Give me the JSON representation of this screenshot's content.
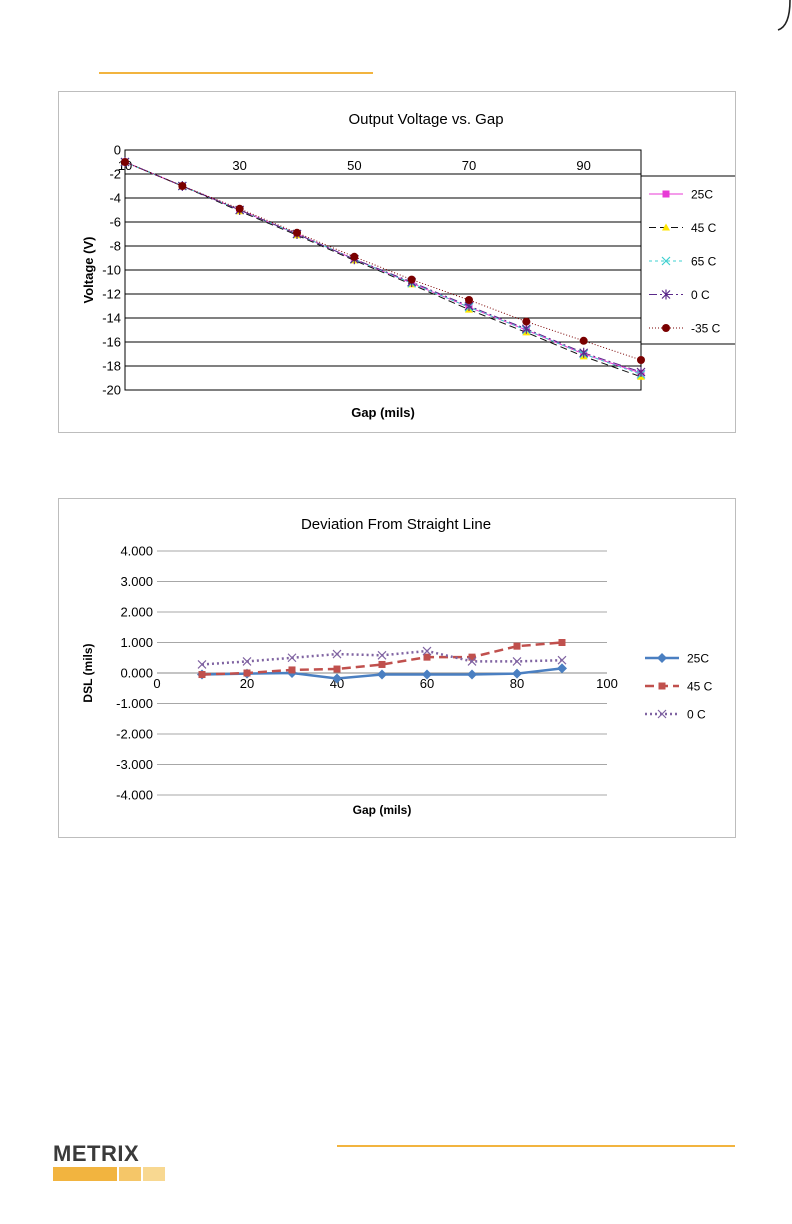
{
  "page": {
    "accent_color": "#f2b43f",
    "logo_text": "METRIX",
    "logo_bar_colors": [
      "#f2b43f",
      "#f5c668",
      "#f8d891"
    ]
  },
  "chart_data": [
    {
      "type": "line",
      "title": "Output  Voltage vs. Gap",
      "xlabel": "Gap (mils)",
      "ylabel": "Voltage (V)",
      "xlim": [
        10,
        100
      ],
      "ylim": [
        -20,
        0
      ],
      "x_ticks": [
        10,
        30,
        50,
        70,
        90
      ],
      "x_tick_labels": [
        "10",
        "30",
        "50",
        "70",
        "90"
      ],
      "y_ticks": [
        0,
        -2,
        -4,
        -6,
        -8,
        -10,
        -12,
        -14,
        -16,
        -18,
        -20
      ],
      "y_tick_labels": [
        "0",
        "-2",
        "-4",
        "-6",
        "-8",
        "-10",
        "-12",
        "-14",
        "-16",
        "-18",
        "-20"
      ],
      "grid": "horizontal",
      "legend_position": "right",
      "x": [
        10,
        20,
        30,
        40,
        50,
        60,
        70,
        80,
        90,
        100
      ],
      "series": [
        {
          "name": "25C",
          "color": "#e83ad6",
          "marker": "square",
          "dash": "",
          "values": [
            -1.0,
            -3.0,
            -5.0,
            -7.0,
            -9.1,
            -11.1,
            -13.1,
            -15.0,
            -17.0,
            -18.6
          ]
        },
        {
          "name": "45 C",
          "color": "#111111",
          "marker_color": "#ffe600",
          "marker": "triangle",
          "dash": "7,4",
          "values": [
            -1.0,
            -3.0,
            -5.1,
            -7.1,
            -9.2,
            -11.2,
            -13.3,
            -15.2,
            -17.2,
            -18.9
          ]
        },
        {
          "name": "65 C",
          "color": "#3fd0d0",
          "marker": "x",
          "dash": "3,3",
          "values": [
            -1.0,
            -3.0,
            -5.0,
            -7.0,
            -9.1,
            -11.1,
            -13.1,
            -15.0,
            -17.0,
            -18.7
          ]
        },
        {
          "name": "0 C",
          "color": "#5b2a8a",
          "marker": "star",
          "dash": "8,3,2,3",
          "values": [
            -1.0,
            -3.0,
            -5.0,
            -7.0,
            -9.1,
            -11.0,
            -13.0,
            -14.9,
            -16.9,
            -18.5
          ]
        },
        {
          "name": "-35 C",
          "color": "#7a0000",
          "marker": "circle",
          "dash": "1,2",
          "values": [
            -1.0,
            -3.0,
            -4.9,
            -6.9,
            -8.9,
            -10.8,
            -12.5,
            -14.3,
            -15.9,
            -17.5
          ]
        }
      ]
    },
    {
      "type": "line",
      "title": "Deviation From Straight Line",
      "xlabel": "Gap (mils)",
      "ylabel": "DSL (mils)",
      "xlim": [
        0,
        100
      ],
      "ylim": [
        -4,
        4
      ],
      "x_ticks": [
        0,
        20,
        40,
        60,
        80,
        100
      ],
      "x_tick_labels": [
        "0",
        "20",
        "40",
        "60",
        "80",
        "100"
      ],
      "y_ticks": [
        4,
        3,
        2,
        1,
        0,
        -1,
        -2,
        -3,
        -4
      ],
      "y_tick_labels": [
        "4.000",
        "3.000",
        "2.000",
        "1.000",
        "0.000",
        "-1.000",
        "-2.000",
        "-3.000",
        "-4.000"
      ],
      "grid": "horizontal",
      "legend_position": "right",
      "x": [
        10,
        20,
        30,
        40,
        50,
        60,
        70,
        80,
        90
      ],
      "series": [
        {
          "name": "25C",
          "color": "#4a7fc1",
          "marker": "diamond",
          "dash": "",
          "values": [
            -0.05,
            -0.02,
            0.0,
            -0.18,
            -0.05,
            -0.05,
            -0.05,
            -0.02,
            0.15
          ]
        },
        {
          "name": "45 C",
          "color": "#c0504d",
          "marker": "square",
          "dash": "9,5",
          "values": [
            -0.05,
            0.0,
            0.1,
            0.13,
            0.28,
            0.52,
            0.52,
            0.88,
            1.0
          ]
        },
        {
          "name": "0 C",
          "color": "#8064a2",
          "marker": "x",
          "dash": "2,3",
          "values": [
            0.28,
            0.38,
            0.5,
            0.62,
            0.58,
            0.72,
            0.38,
            0.38,
            0.42
          ]
        }
      ]
    }
  ]
}
